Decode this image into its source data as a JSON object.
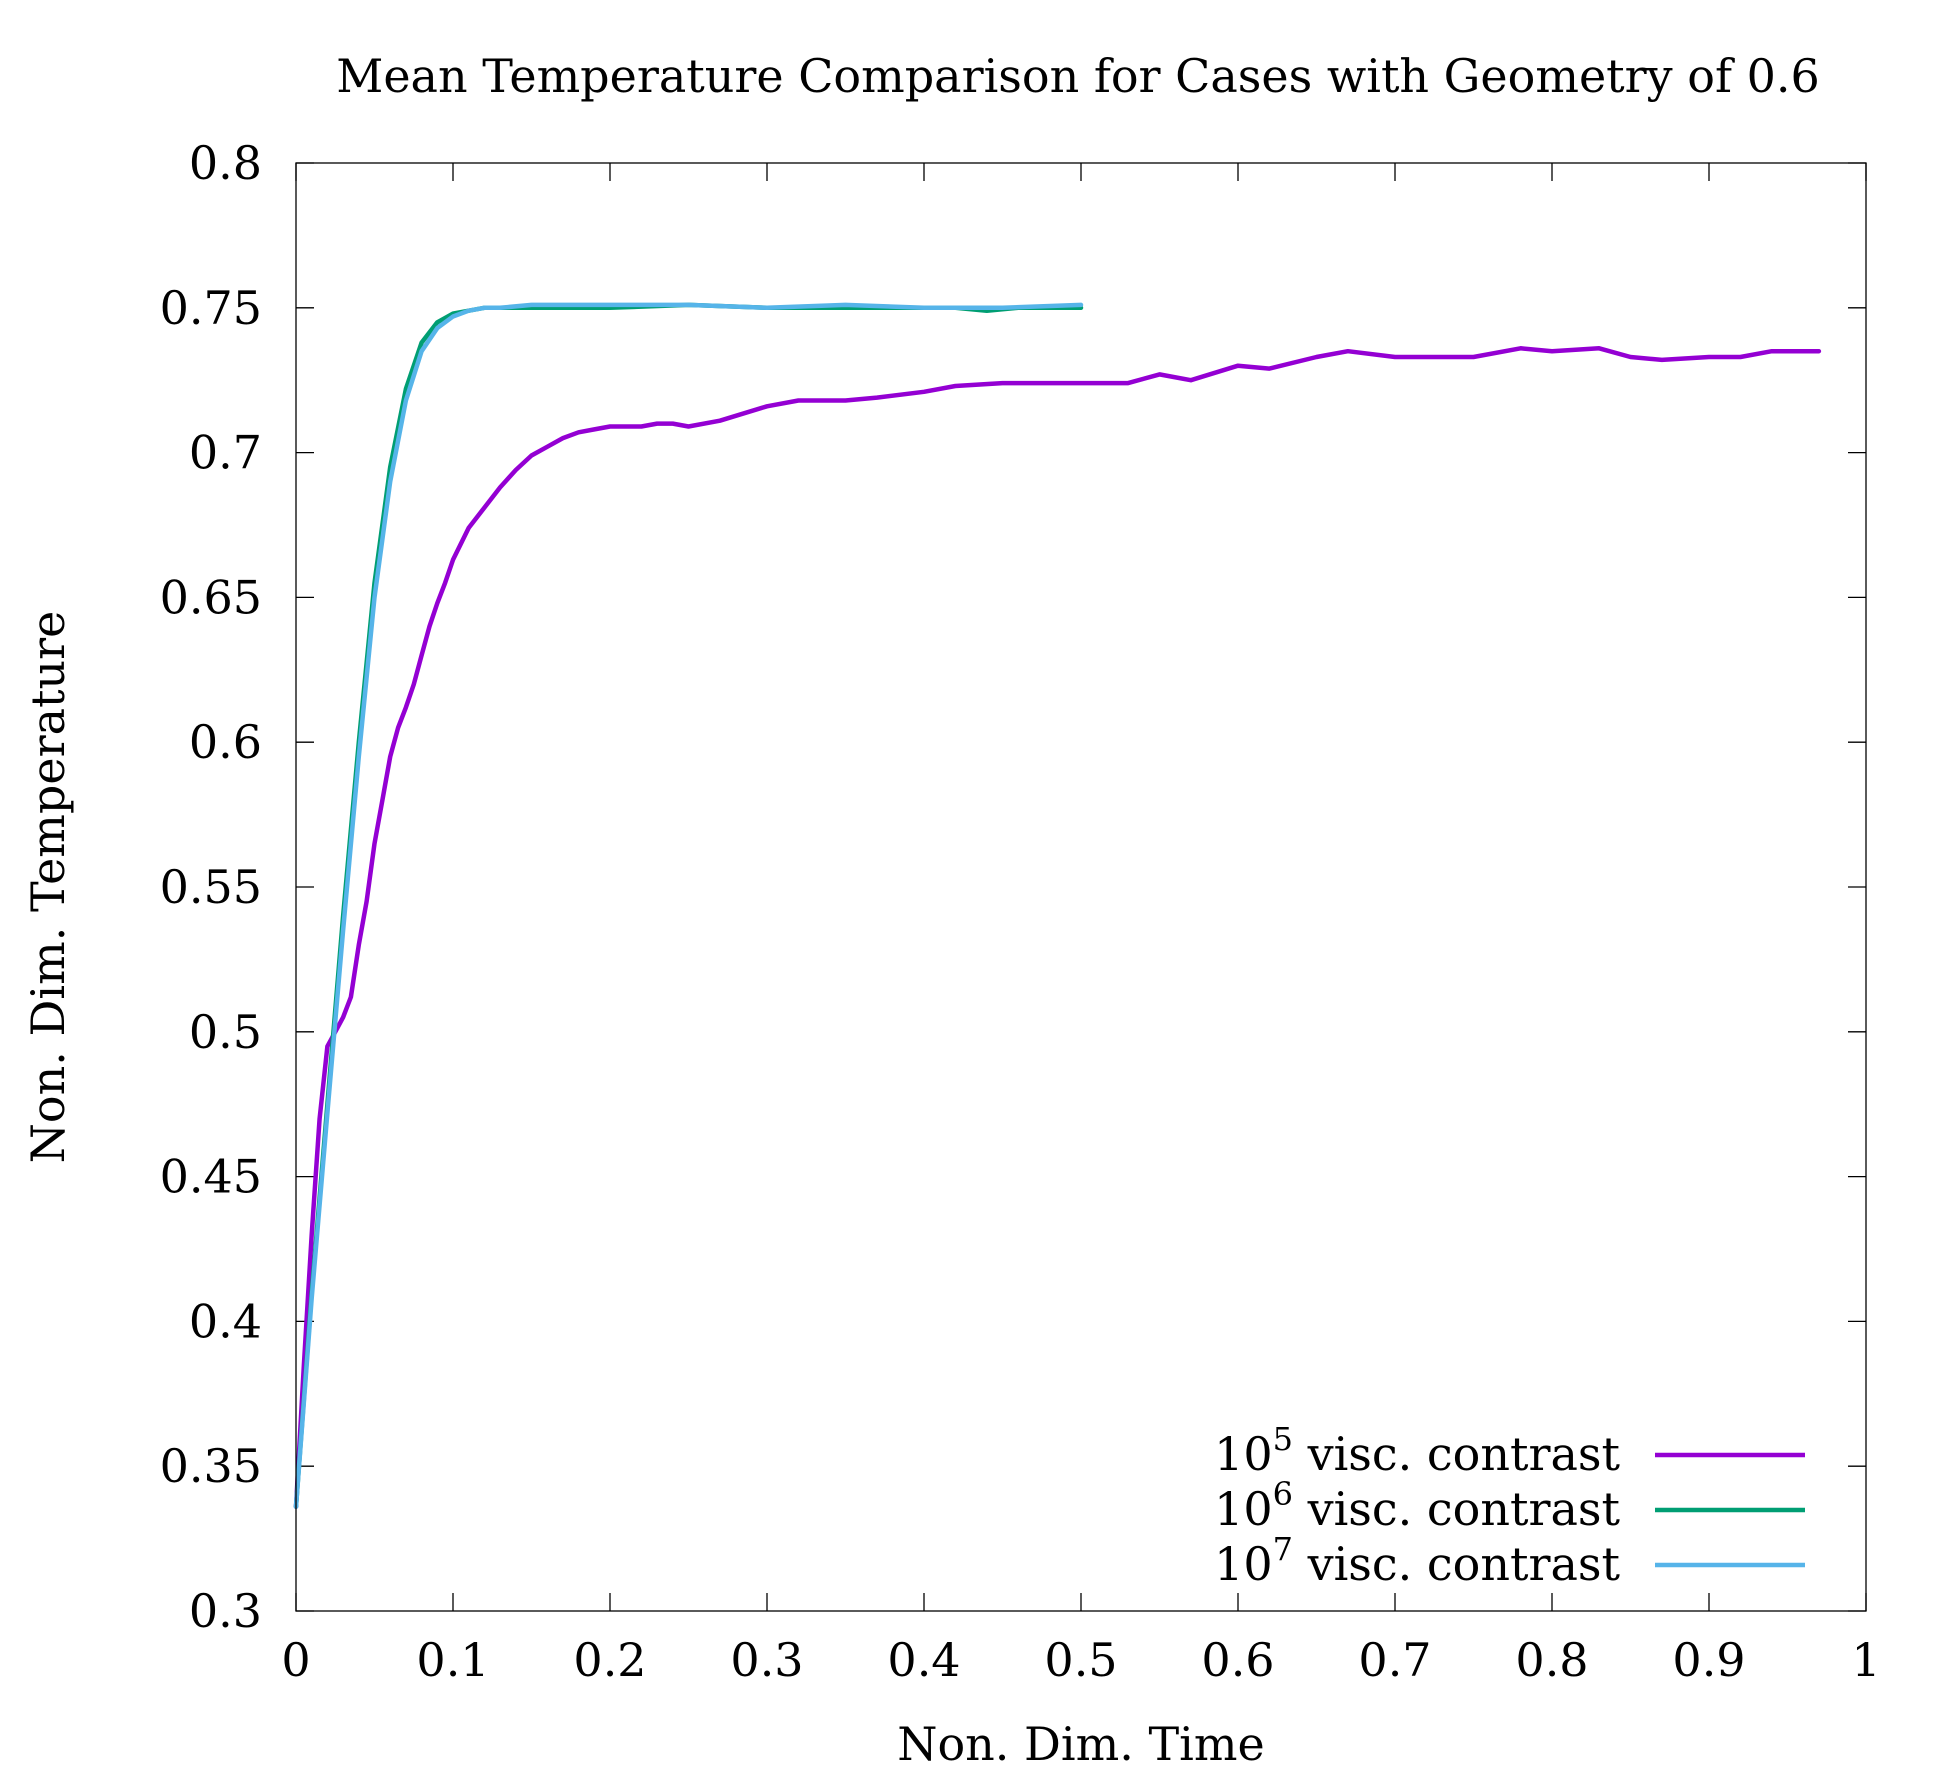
{
  "chart_data": {
    "type": "line",
    "title": "Mean Temperature Comparison for Cases with Geometry of 0.6",
    "xlabel": "Non. Dim. Time",
    "ylabel": "Non. Dim. Temperature",
    "xlim": [
      0,
      1
    ],
    "ylim": [
      0.3,
      0.8
    ],
    "grid": false,
    "legend_position": "bottom-right",
    "x_ticks": [
      "0",
      "0.1",
      "0.2",
      "0.3",
      "0.4",
      "0.5",
      "0.6",
      "0.7",
      "0.8",
      "0.9",
      "1"
    ],
    "y_ticks": [
      "0.3",
      "0.35",
      "0.4",
      "0.45",
      "0.5",
      "0.55",
      "0.6",
      "0.65",
      "0.7",
      "0.75",
      "0.8"
    ],
    "series": [
      {
        "base": "10",
        "exponent": "5",
        "label_suffix": " visc. contrast",
        "color": "#9400d3",
        "x": [
          0,
          0.005,
          0.01,
          0.015,
          0.02,
          0.025,
          0.03,
          0.035,
          0.04,
          0.045,
          0.05,
          0.055,
          0.06,
          0.065,
          0.07,
          0.075,
          0.08,
          0.085,
          0.09,
          0.095,
          0.1,
          0.11,
          0.12,
          0.13,
          0.14,
          0.15,
          0.16,
          0.17,
          0.18,
          0.19,
          0.2,
          0.21,
          0.22,
          0.23,
          0.24,
          0.25,
          0.27,
          0.3,
          0.32,
          0.35,
          0.37,
          0.4,
          0.42,
          0.45,
          0.48,
          0.5,
          0.53,
          0.55,
          0.57,
          0.6,
          0.62,
          0.65,
          0.67,
          0.7,
          0.72,
          0.75,
          0.78,
          0.8,
          0.83,
          0.85,
          0.87,
          0.9,
          0.92,
          0.94,
          0.97
        ],
        "y": [
          0.336,
          0.385,
          0.43,
          0.47,
          0.495,
          0.5,
          0.505,
          0.512,
          0.53,
          0.545,
          0.565,
          0.58,
          0.595,
          0.605,
          0.612,
          0.62,
          0.63,
          0.64,
          0.648,
          0.655,
          0.663,
          0.674,
          0.681,
          0.688,
          0.694,
          0.699,
          0.702,
          0.705,
          0.707,
          0.708,
          0.709,
          0.709,
          0.709,
          0.71,
          0.71,
          0.709,
          0.711,
          0.716,
          0.718,
          0.718,
          0.719,
          0.721,
          0.723,
          0.724,
          0.724,
          0.724,
          0.724,
          0.727,
          0.725,
          0.73,
          0.729,
          0.733,
          0.735,
          0.733,
          0.733,
          0.733,
          0.736,
          0.735,
          0.736,
          0.733,
          0.732,
          0.733,
          0.733,
          0.735,
          0.735
        ]
      },
      {
        "base": "10",
        "exponent": "6",
        "label_suffix": " visc. contrast",
        "color": "#009e73",
        "x": [
          0,
          0.01,
          0.02,
          0.03,
          0.04,
          0.05,
          0.06,
          0.07,
          0.08,
          0.09,
          0.1,
          0.11,
          0.12,
          0.13,
          0.15,
          0.18,
          0.2,
          0.25,
          0.3,
          0.35,
          0.4,
          0.42,
          0.44,
          0.46,
          0.5
        ],
        "y": [
          0.336,
          0.41,
          0.475,
          0.54,
          0.6,
          0.655,
          0.695,
          0.722,
          0.738,
          0.745,
          0.748,
          0.749,
          0.75,
          0.75,
          0.75,
          0.75,
          0.75,
          0.751,
          0.75,
          0.75,
          0.75,
          0.75,
          0.749,
          0.75,
          0.75
        ]
      },
      {
        "base": "10",
        "exponent": "7",
        "label_suffix": " visc. contrast",
        "color": "#56b4e9",
        "x": [
          0,
          0.01,
          0.02,
          0.03,
          0.04,
          0.05,
          0.06,
          0.07,
          0.08,
          0.09,
          0.1,
          0.11,
          0.12,
          0.13,
          0.15,
          0.18,
          0.2,
          0.22,
          0.25,
          0.3,
          0.35,
          0.4,
          0.45,
          0.5
        ],
        "y": [
          0.336,
          0.408,
          0.472,
          0.535,
          0.595,
          0.65,
          0.69,
          0.718,
          0.735,
          0.743,
          0.747,
          0.749,
          0.75,
          0.75,
          0.751,
          0.751,
          0.751,
          0.751,
          0.751,
          0.75,
          0.751,
          0.75,
          0.75,
          0.751
        ]
      }
    ]
  }
}
